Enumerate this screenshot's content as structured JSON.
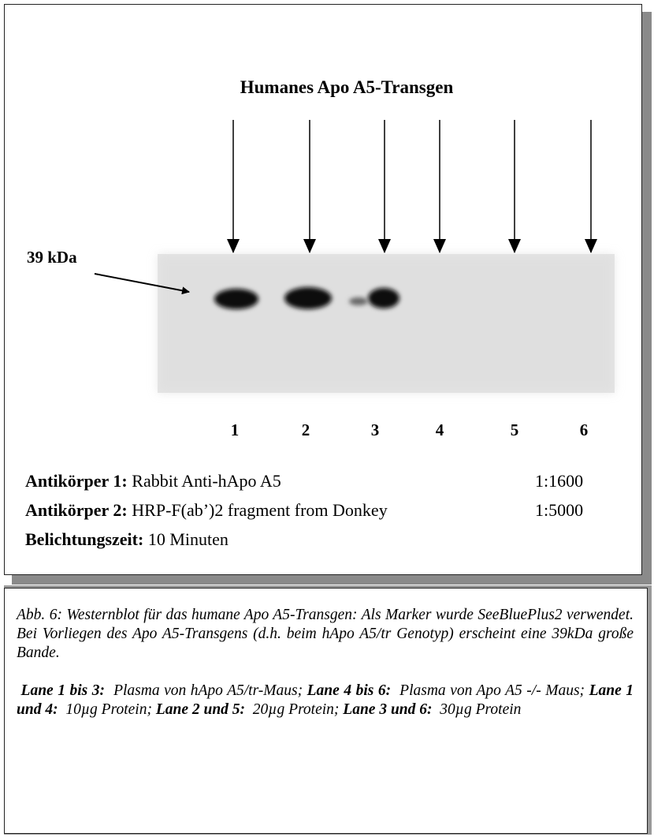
{
  "figure": {
    "title": "Humanes Apo A5-Transgen",
    "marker": "39 kDa",
    "lanes": [
      "1",
      "2",
      "3",
      "4",
      "5",
      "6"
    ],
    "antibodies": [
      {
        "label": "Antikörper 1:",
        "text": "Rabbit Anti-hApo A5",
        "dilution": "1:1600"
      },
      {
        "label": "Antikörper 2:",
        "text": "HRP-F(ab’)2 fragment from Donkey",
        "dilution": "1:5000"
      },
      {
        "label": "Belichtungszeit:",
        "text": "10 Minuten"
      }
    ]
  },
  "caption": {
    "description": "Abb. 6: Westernblot für das humane Apo A5-Transgen: Als Marker wurde SeeBluePlus2  verwendet. Bei Vorliegen des Apo A5-Transgens (d.h. beim hApo A5/tr Genotyp) erscheint eine  39kDa große Bande.",
    "lanes": [
      {
        "label": "Lane 1 bis 3:",
        "text": "Plasma von hApo A5/tr-Maus;"
      },
      {
        "label": "Lane 4 bis 6:",
        "text": "Plasma von Apo A5 -/- Maus;"
      },
      {
        "label": "Lane 1 und 4:",
        "text": "10µg Protein;"
      },
      {
        "label": "Lane 2 und 5:",
        "text": "20µg Protein;"
      },
      {
        "label": "Lane 3 und 6:",
        "text": "30µg Protein"
      }
    ]
  }
}
